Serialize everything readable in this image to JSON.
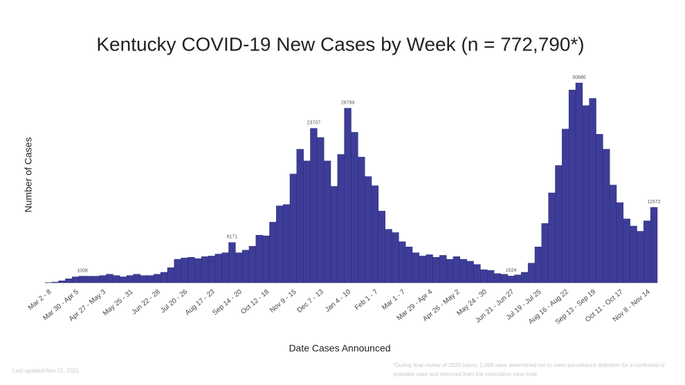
{
  "chart_data": {
    "type": "bar",
    "title": "Kentucky COVID-19 New Cases by Week (n = 772,790*)",
    "y_label": "Number of Cases",
    "x_label": "Date Cases Announced",
    "color": "#3d3d99",
    "ylim": [
      0,
      31000
    ],
    "categories": [
      "Mar 2 - 8",
      null,
      null,
      null,
      "Mar 30 - Apr 5",
      null,
      null,
      null,
      "Apr 27 - May 3",
      null,
      null,
      null,
      "May 25 - 31",
      null,
      null,
      null,
      "Jun 22 - 28",
      null,
      null,
      null,
      "Jul 20 - 26",
      null,
      null,
      null,
      "Aug 17 - 23",
      null,
      null,
      null,
      "Sep 14 - 20",
      null,
      null,
      null,
      "Oct 12 - 18",
      null,
      null,
      null,
      "Nov 9 - 15",
      null,
      null,
      null,
      "Dec 7 - 13",
      null,
      null,
      null,
      "Jan 4 - 10",
      null,
      null,
      null,
      "Feb 1 - 7",
      null,
      null,
      null,
      "Mar 1 - 7",
      null,
      null,
      null,
      "Mar 29 - Apr 4",
      null,
      null,
      null,
      "Apr 26 - May 2",
      null,
      null,
      null,
      "May 24 - 30",
      null,
      null,
      null,
      "Jun 21 - Jun 27",
      null,
      null,
      null,
      "Jul 19 - Jul 25",
      null,
      null,
      null,
      "Aug 16 - Aug 22",
      null,
      null,
      null,
      "Sep 13 - Sep 19",
      null,
      null,
      null,
      "Oct 11 - Oct 17",
      null,
      null,
      null,
      "Nov 8 - Nov 14",
      null
    ],
    "values": [
      20,
      100,
      300,
      600,
      900,
      1008,
      1000,
      1000,
      1100,
      1300,
      1100,
      900,
      1100,
      1300,
      1100,
      1100,
      1300,
      1600,
      2300,
      3600,
      3800,
      3900,
      3700,
      4000,
      4100,
      4400,
      4600,
      6171,
      4600,
      5000,
      5600,
      7300,
      7200,
      9300,
      11800,
      12000,
      16700,
      20500,
      18700,
      23707,
      22300,
      18700,
      14800,
      19700,
      26799,
      23100,
      19300,
      16300,
      14900,
      11000,
      8200,
      7700,
      6300,
      5500,
      4600,
      4100,
      4300,
      3900,
      4200,
      3600,
      4000,
      3600,
      3300,
      2800,
      2000,
      1900,
      1400,
      1300,
      1024,
      1200,
      1600,
      3000,
      5500,
      9100,
      13800,
      18000,
      23600,
      29600,
      30680,
      27200,
      28300,
      22800,
      20500,
      15000,
      12300,
      9800,
      8700,
      7900,
      9500,
      11572
    ],
    "value_labels": [
      null,
      null,
      null,
      null,
      null,
      "1008",
      null,
      null,
      null,
      null,
      null,
      null,
      null,
      null,
      null,
      null,
      null,
      null,
      null,
      null,
      null,
      null,
      null,
      null,
      null,
      null,
      null,
      "6171",
      null,
      null,
      null,
      null,
      null,
      null,
      null,
      null,
      null,
      null,
      null,
      "23707",
      null,
      null,
      null,
      null,
      "26799",
      null,
      null,
      null,
      null,
      null,
      null,
      null,
      null,
      null,
      null,
      null,
      null,
      null,
      null,
      null,
      null,
      null,
      null,
      null,
      null,
      null,
      null,
      null,
      "1024",
      null,
      null,
      null,
      null,
      null,
      null,
      null,
      null,
      null,
      "30680",
      null,
      null,
      null,
      null,
      null,
      null,
      null,
      null,
      null,
      null,
      "11572"
    ],
    "note": "Last updated Nov 21, 2021",
    "footnote": "*During final review of 2020 cases, 1,008 were determined not to meet surveillance definition for a confirmed or probable case and removed from the cumulative case total"
  }
}
